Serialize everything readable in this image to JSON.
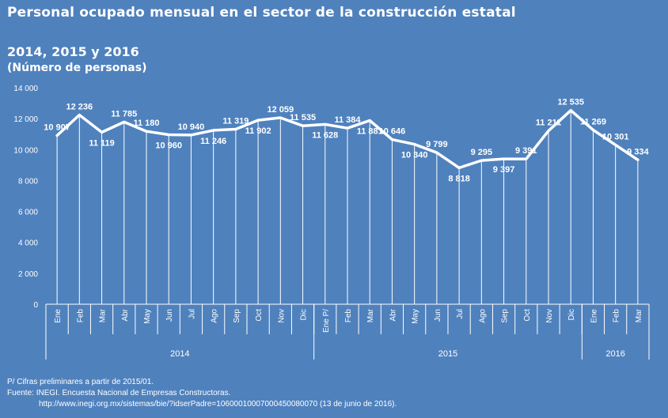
{
  "header": {
    "title": "Personal ocupado mensual en el sector de la construcción estatal",
    "subtitle": "2014, 2015 y 2016",
    "unit": "(Número de personas)"
  },
  "footer": {
    "note": "P/ Cifras preliminares a partir de 2015/01.",
    "source": "Fuente: INEGI. Encuesta Nacional de Empresas Constructoras.",
    "url": "http://www.inegi.org.mx/sistemas/bie/?idserPadre=10600010007000450080070 (13 de junio de 2016)."
  },
  "colors": {
    "background": "#4f81bd",
    "line": "#ffffff"
  },
  "chart_data": {
    "type": "line",
    "title": "Personal ocupado mensual en el sector de la construcción estatal",
    "subtitle": "2014, 2015 y 2016",
    "ylabel": "(Número de personas)",
    "ylim": [
      0,
      14000
    ],
    "yticks": [
      0,
      2000,
      4000,
      6000,
      8000,
      10000,
      12000,
      14000
    ],
    "ytick_labels": [
      "0",
      "2 000",
      "4 000",
      "6 000",
      "8 000",
      "10 000",
      "12 000",
      "14 000"
    ],
    "grid": false,
    "categories": [
      "Ene",
      "Feb",
      "Mar",
      "Abr",
      "May",
      "Jun",
      "Jul",
      "Ago",
      "Sep",
      "Oct",
      "Nov",
      "Dic",
      "Ene P/",
      "Feb",
      "Mar",
      "Abr",
      "May",
      "Jun",
      "Jul",
      "Ago",
      "Sep",
      "Oct",
      "Nov",
      "Dic",
      "Ene",
      "Feb",
      "Mar"
    ],
    "groups": [
      {
        "label": "2014",
        "count": 12
      },
      {
        "label": "2015",
        "count": 12
      },
      {
        "label": "2016",
        "count": 3
      }
    ],
    "values": [
      10907,
      12236,
      11119,
      11785,
      11180,
      10960,
      10940,
      11246,
      11319,
      11902,
      12059,
      11535,
      11628,
      11384,
      11881,
      10646,
      10340,
      9799,
      8818,
      9295,
      9397,
      9391,
      11211,
      12535,
      11269,
      10301,
      9334
    ],
    "value_labels": [
      "10 907",
      "12 236",
      "11 119",
      "11 785",
      "11 180",
      "10 960",
      "10 940",
      "11 246",
      "11 319",
      "11 902",
      "12 059",
      "11 535",
      "11 628",
      "11 384",
      "11 881",
      "10 646",
      "10 340",
      "9 799",
      "8 818",
      "9 295",
      "9 397",
      "9 391",
      "11 211",
      "12 535",
      "11 269",
      "10 301",
      "9 334"
    ]
  }
}
